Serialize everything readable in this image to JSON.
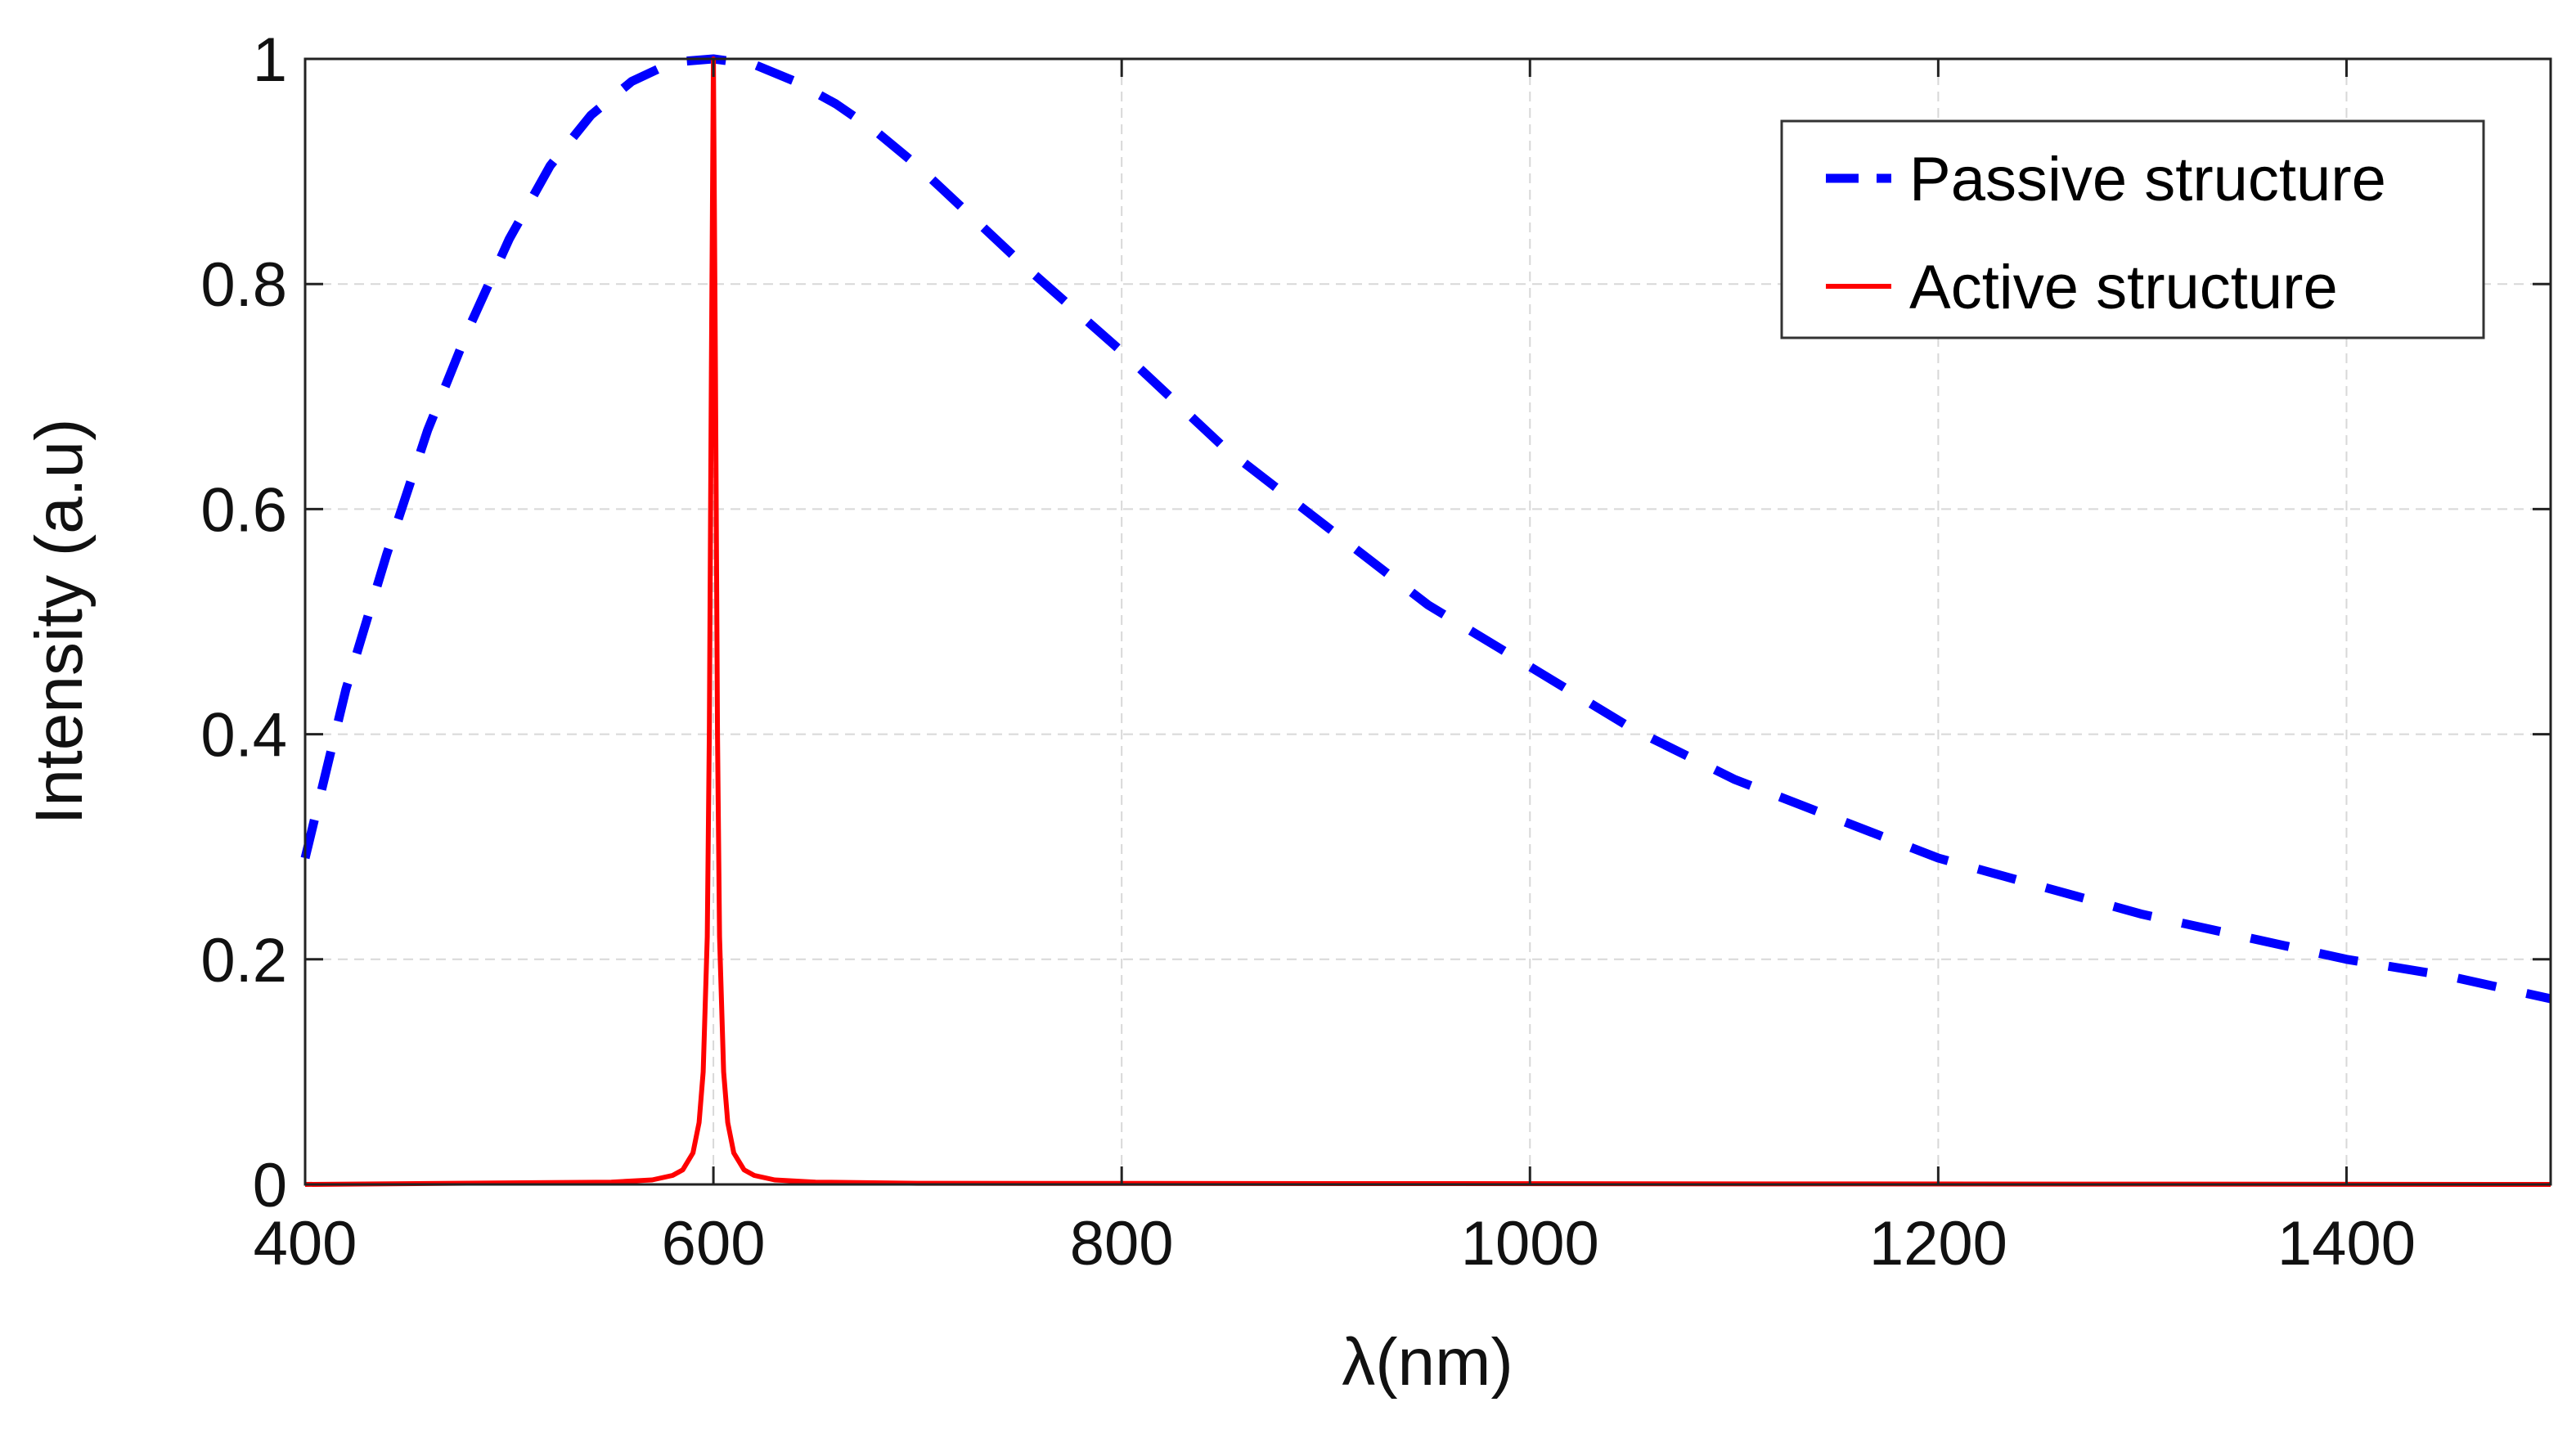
{
  "chart_data": {
    "type": "line",
    "xlabel": "λ(nm)",
    "ylabel": "Intensity (a.u)",
    "xlim": [
      400,
      1500
    ],
    "ylim": [
      0,
      1
    ],
    "x_ticks": [
      "400",
      "600",
      "800",
      "1000",
      "1200",
      "1400"
    ],
    "y_ticks": [
      "0",
      "0.2",
      "0.4",
      "0.6",
      "0.8",
      "1"
    ],
    "grid": true,
    "legend_position": "top-right",
    "series": [
      {
        "name": "Passive structure",
        "style": "dashed",
        "color": "#0000ff",
        "x": [
          400,
          420,
          440,
          460,
          480,
          500,
          520,
          540,
          560,
          580,
          600,
          620,
          640,
          660,
          680,
          700,
          750,
          800,
          850,
          900,
          950,
          1000,
          1050,
          1100,
          1150,
          1200,
          1250,
          1300,
          1350,
          1400,
          1450,
          1500
        ],
        "y": [
          0.29,
          0.44,
          0.56,
          0.67,
          0.76,
          0.84,
          0.905,
          0.95,
          0.98,
          0.997,
          1.0,
          0.995,
          0.98,
          0.96,
          0.935,
          0.905,
          0.82,
          0.74,
          0.655,
          0.585,
          0.515,
          0.46,
          0.405,
          0.36,
          0.325,
          0.29,
          0.265,
          0.24,
          0.22,
          0.2,
          0.185,
          0.165
        ]
      },
      {
        "name": "Active structure",
        "style": "solid",
        "color": "#ff0000",
        "x": [
          400,
          550,
          570,
          580,
          585,
          590,
          593,
          595,
          597,
          598,
          599,
          600,
          601,
          602,
          603,
          605,
          607,
          610,
          615,
          620,
          630,
          650,
          700,
          1500
        ],
        "y": [
          0,
          0.002,
          0.004,
          0.008,
          0.013,
          0.028,
          0.055,
          0.1,
          0.22,
          0.4,
          0.72,
          1.0,
          0.72,
          0.4,
          0.22,
          0.1,
          0.055,
          0.028,
          0.013,
          0.008,
          0.004,
          0.002,
          0.001,
          0
        ]
      }
    ]
  }
}
